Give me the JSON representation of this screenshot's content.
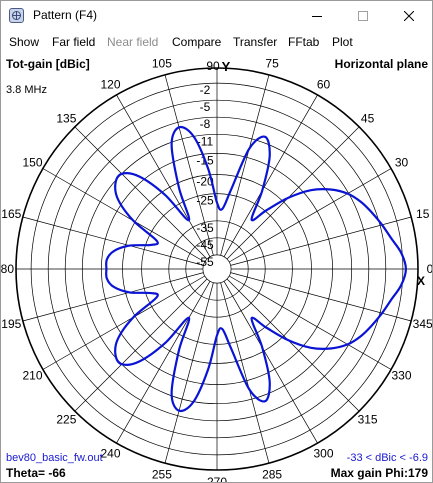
{
  "window": {
    "title": "Pattern   (F4)"
  },
  "menu": [
    {
      "label": "Show",
      "enabled": true
    },
    {
      "label": "Far field",
      "enabled": true
    },
    {
      "label": "Near field",
      "enabled": false
    },
    {
      "label": "Compare",
      "enabled": true
    },
    {
      "label": "Transfer",
      "enabled": true
    },
    {
      "label": "FFtab",
      "enabled": true
    },
    {
      "label": "Plot",
      "enabled": true
    }
  ],
  "plot": {
    "header_left": "Tot-gain [dBic]",
    "header_right": "Horizontal plane",
    "frequency": "3.8 MHz",
    "axis_letter": "Y",
    "x_marker": "X",
    "footer_file": "bev80_basic_fw.out",
    "footer_theta": "Theta= -66",
    "footer_range": "-33 < dBic < -6.9",
    "footer_maxgain": "Max gain Phi:179",
    "colors": {
      "trace": "#0a14d4",
      "grid": "#000000",
      "footer_blue": "#1a1ad0"
    }
  },
  "chart_data": {
    "type": "polar",
    "title": "Horizontal plane",
    "quantity": "Tot-gain [dBic]",
    "angle_labels": [
      "0",
      "15",
      "30",
      "45",
      "60",
      "75",
      "90",
      "105",
      "120",
      "135",
      "150",
      "165",
      "180",
      "195",
      "210",
      "225",
      "240",
      "255",
      "270",
      "285",
      "300",
      "315",
      "330",
      "345"
    ],
    "radial_labels": [
      "0",
      "-2",
      "-5",
      "-8",
      "-11",
      "-15",
      "-20",
      "-25",
      "-35",
      "-45",
      "-55"
    ],
    "series": [
      {
        "phi_deg": [
          0,
          5,
          10,
          15,
          20,
          25,
          30,
          35,
          40,
          45,
          50,
          55,
          60,
          65,
          70,
          75,
          80,
          85,
          90,
          95,
          100,
          105,
          110,
          115,
          120,
          125,
          130,
          135,
          140,
          145,
          150,
          155,
          160,
          165,
          170,
          175,
          180,
          185,
          190,
          195,
          200,
          205,
          210,
          215,
          220,
          225,
          230,
          235,
          240,
          245,
          250,
          255,
          260,
          265,
          270,
          275,
          280,
          285,
          290,
          295,
          300,
          305,
          310,
          315,
          320,
          325,
          330,
          335,
          340,
          345,
          350,
          355
        ],
        "radius_ring": [
          0.94,
          0.92,
          0.88,
          0.85,
          0.82,
          0.79,
          0.75,
          0.69,
          0.61,
          0.5,
          0.38,
          0.3,
          0.45,
          0.62,
          0.7,
          0.62,
          0.4,
          0.3,
          0.33,
          0.5,
          0.67,
          0.73,
          0.66,
          0.45,
          0.28,
          0.45,
          0.6,
          0.67,
          0.66,
          0.6,
          0.48,
          0.33,
          0.35,
          0.45,
          0.52,
          0.55,
          0.55,
          0.55,
          0.52,
          0.45,
          0.35,
          0.33,
          0.48,
          0.6,
          0.66,
          0.67,
          0.6,
          0.45,
          0.28,
          0.45,
          0.66,
          0.73,
          0.67,
          0.5,
          0.33,
          0.3,
          0.4,
          0.62,
          0.7,
          0.62,
          0.45,
          0.3,
          0.38,
          0.5,
          0.61,
          0.69,
          0.75,
          0.79,
          0.82,
          0.85,
          0.88,
          0.92
        ]
      }
    ]
  }
}
